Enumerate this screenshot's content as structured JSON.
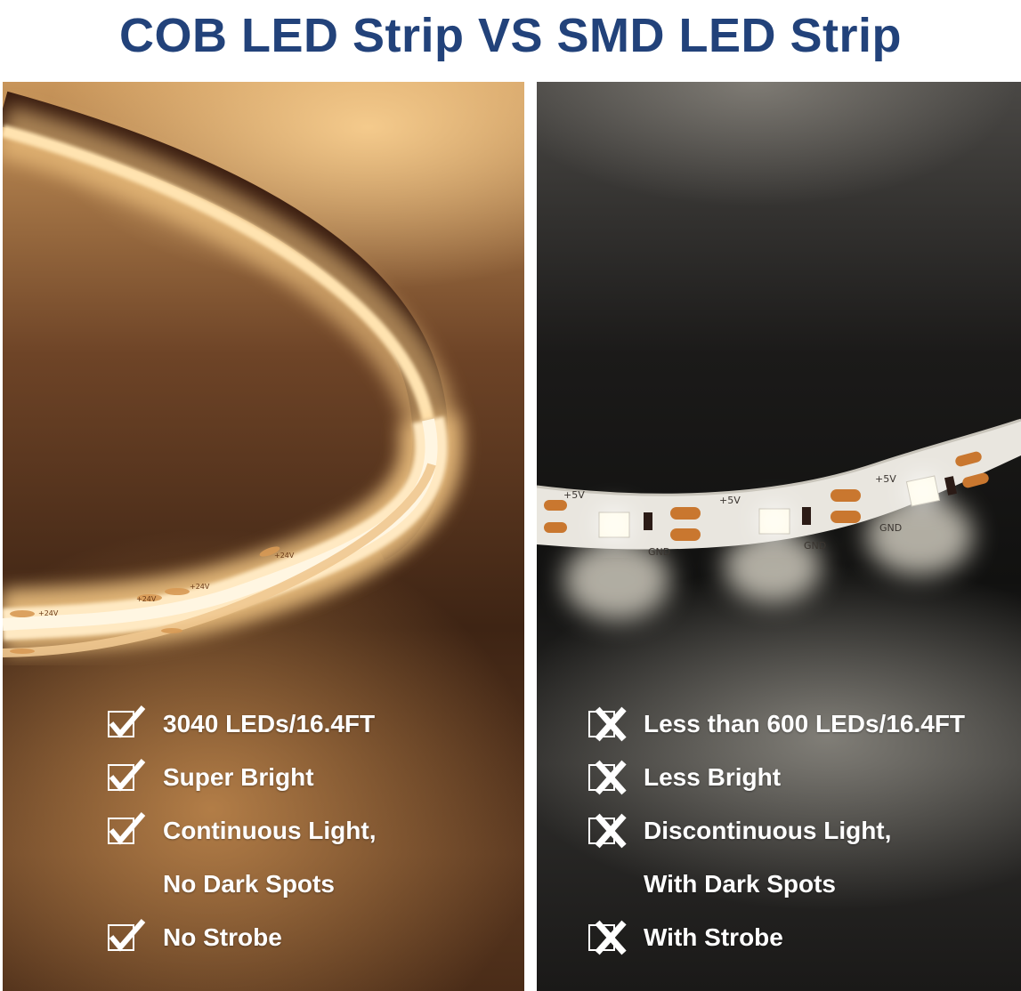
{
  "title": "COB LED Strip VS SMD LED Strip",
  "left_panel": {
    "strip_labels": [
      "+24V",
      "+24V",
      "+24V",
      "+24V"
    ],
    "features": [
      {
        "icon": "check-icon",
        "text": "3040 LEDs/16.4FT"
      },
      {
        "icon": "check-icon",
        "text": "Super Bright"
      },
      {
        "icon": "check-icon",
        "text": "Continuous Light,"
      },
      {
        "icon": "",
        "text": "No Dark Spots"
      },
      {
        "icon": "check-icon",
        "text": "No Strobe"
      }
    ]
  },
  "right_panel": {
    "strip_labels": [
      "+5V",
      "+5V",
      "+5V",
      "GND",
      "GND",
      "GND"
    ],
    "features": [
      {
        "icon": "cross-icon",
        "text": "Less than 600 LEDs/16.4FT"
      },
      {
        "icon": "cross-icon",
        "text": "Less Bright"
      },
      {
        "icon": "cross-icon",
        "text": "Discontinuous Light,"
      },
      {
        "icon": "",
        "text": "With Dark Spots"
      },
      {
        "icon": "cross-icon",
        "text": "With Strobe"
      }
    ]
  },
  "colors": {
    "title": "#22427a",
    "cob_glow": "#ffd99a",
    "smd_light": "#fffbe8"
  }
}
